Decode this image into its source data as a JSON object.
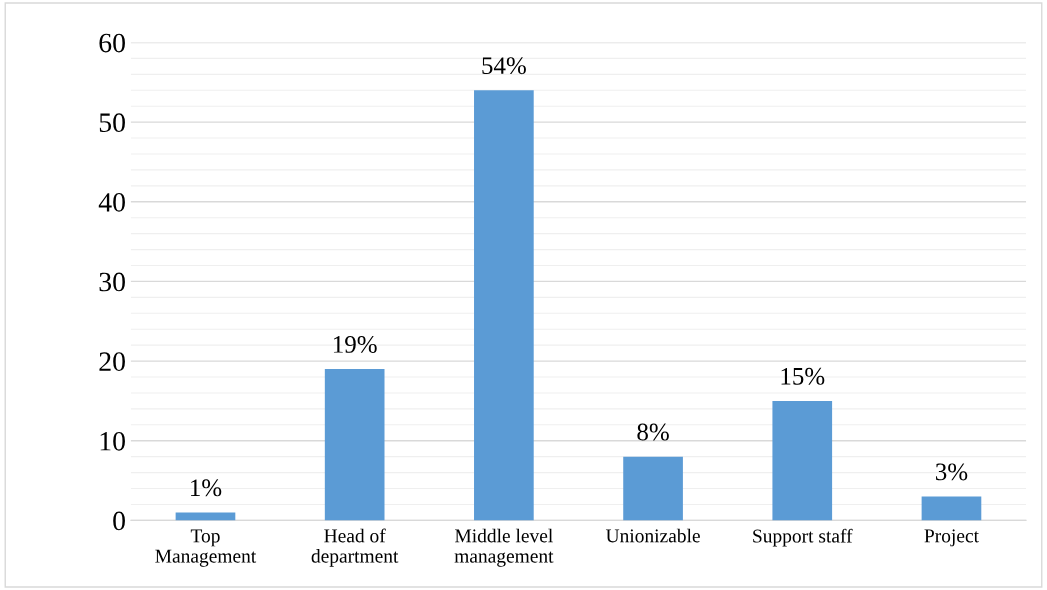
{
  "chart_data": {
    "type": "bar",
    "categories": [
      "Top\nManagement",
      "Head of\ndepartment",
      "Middle level\nmanagement",
      "Unionizable",
      "Support staff",
      "Project"
    ],
    "values": [
      1,
      19,
      54,
      8,
      15,
      3
    ],
    "value_labels": [
      "1%",
      "19%",
      "54%",
      "8%",
      "15%",
      "3%"
    ],
    "color": "#5b9bd5",
    "ylim": [
      0,
      60
    ],
    "yticks": [
      0,
      10,
      20,
      30,
      40,
      50,
      60
    ],
    "grid": "y"
  }
}
